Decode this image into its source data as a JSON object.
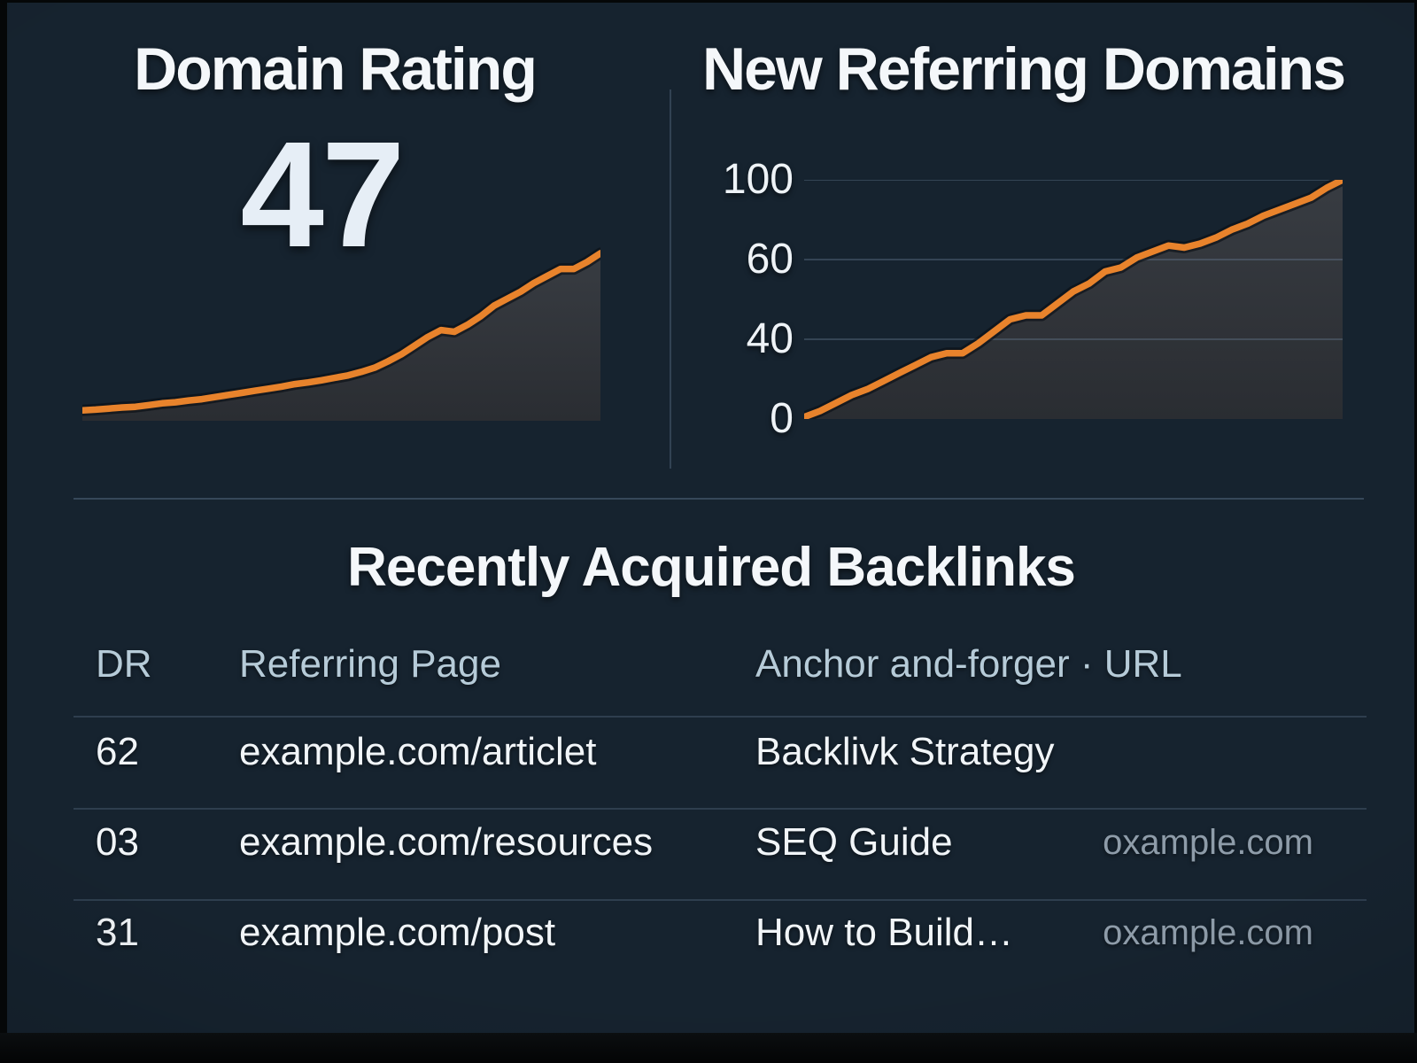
{
  "panels": {
    "domain_rating": {
      "title": "Domain Rating",
      "value": "47"
    },
    "new_referring_domains": {
      "title": "New Referring Domains"
    }
  },
  "backlinks": {
    "title": "Recently Acquired Backlinks",
    "headers": [
      "DR",
      "Referring Page",
      "Anchor and-forger · URL"
    ],
    "rows": [
      {
        "dr": "62",
        "referring_page": "example.com/articlet",
        "anchor": "Backlivk Strategy",
        "url": ""
      },
      {
        "dr": "03",
        "referring_page": "example.com/resources",
        "anchor": "SEQ Guide",
        "url": "oxample.com"
      },
      {
        "dr": "31",
        "referring_page": "example.com/post",
        "anchor": "How to Build…",
        "url": "oxample.com"
      }
    ]
  },
  "colors": {
    "accent_orange": "#e8832c",
    "panel_background": "#16232f",
    "area_fill_top": "#383c42",
    "area_fill_bottom": "#2a2d32",
    "gridline": "#5a6e87",
    "header_text": "#b6cbd8",
    "muted_text": "#8e9ca9"
  },
  "chart_data": [
    {
      "type": "area",
      "title": "Domain Rating",
      "big_value": 47,
      "values": [
        3,
        3.2,
        3.5,
        3.8,
        4,
        4.5,
        5,
        5.3,
        5.8,
        6.2,
        6.8,
        7.4,
        8,
        8.6,
        9.2,
        9.8,
        10.5,
        11,
        11.6,
        12.3,
        13,
        14,
        15.2,
        17,
        19,
        21.5,
        24,
        26,
        25.5,
        27.5,
        30,
        33,
        35,
        37,
        39.5,
        41.5,
        43.5,
        43.5,
        45.5,
        48
      ],
      "ylim": [
        0,
        50
      ],
      "grid": false,
      "legend": "none",
      "line_color": "#e8832c",
      "fill_top": "#383c42",
      "fill_bottom": "#2a2d32"
    },
    {
      "type": "area",
      "title": "New Referring Domains",
      "values": [
        1,
        4,
        8,
        12,
        15,
        19,
        23,
        27,
        31,
        33,
        33,
        38,
        42,
        45,
        46,
        46,
        49,
        52,
        54,
        57,
        58,
        61,
        64,
        67,
        66,
        68,
        71,
        75,
        78,
        82,
        85,
        88,
        91,
        96,
        100
      ],
      "yticks": [
        100,
        60,
        40,
        0
      ],
      "ylim": [
        0,
        100
      ],
      "grid": true,
      "legend": "none",
      "line_color": "#e8832c",
      "fill_top": "#383c42",
      "fill_bottom": "#2a2d32"
    }
  ]
}
